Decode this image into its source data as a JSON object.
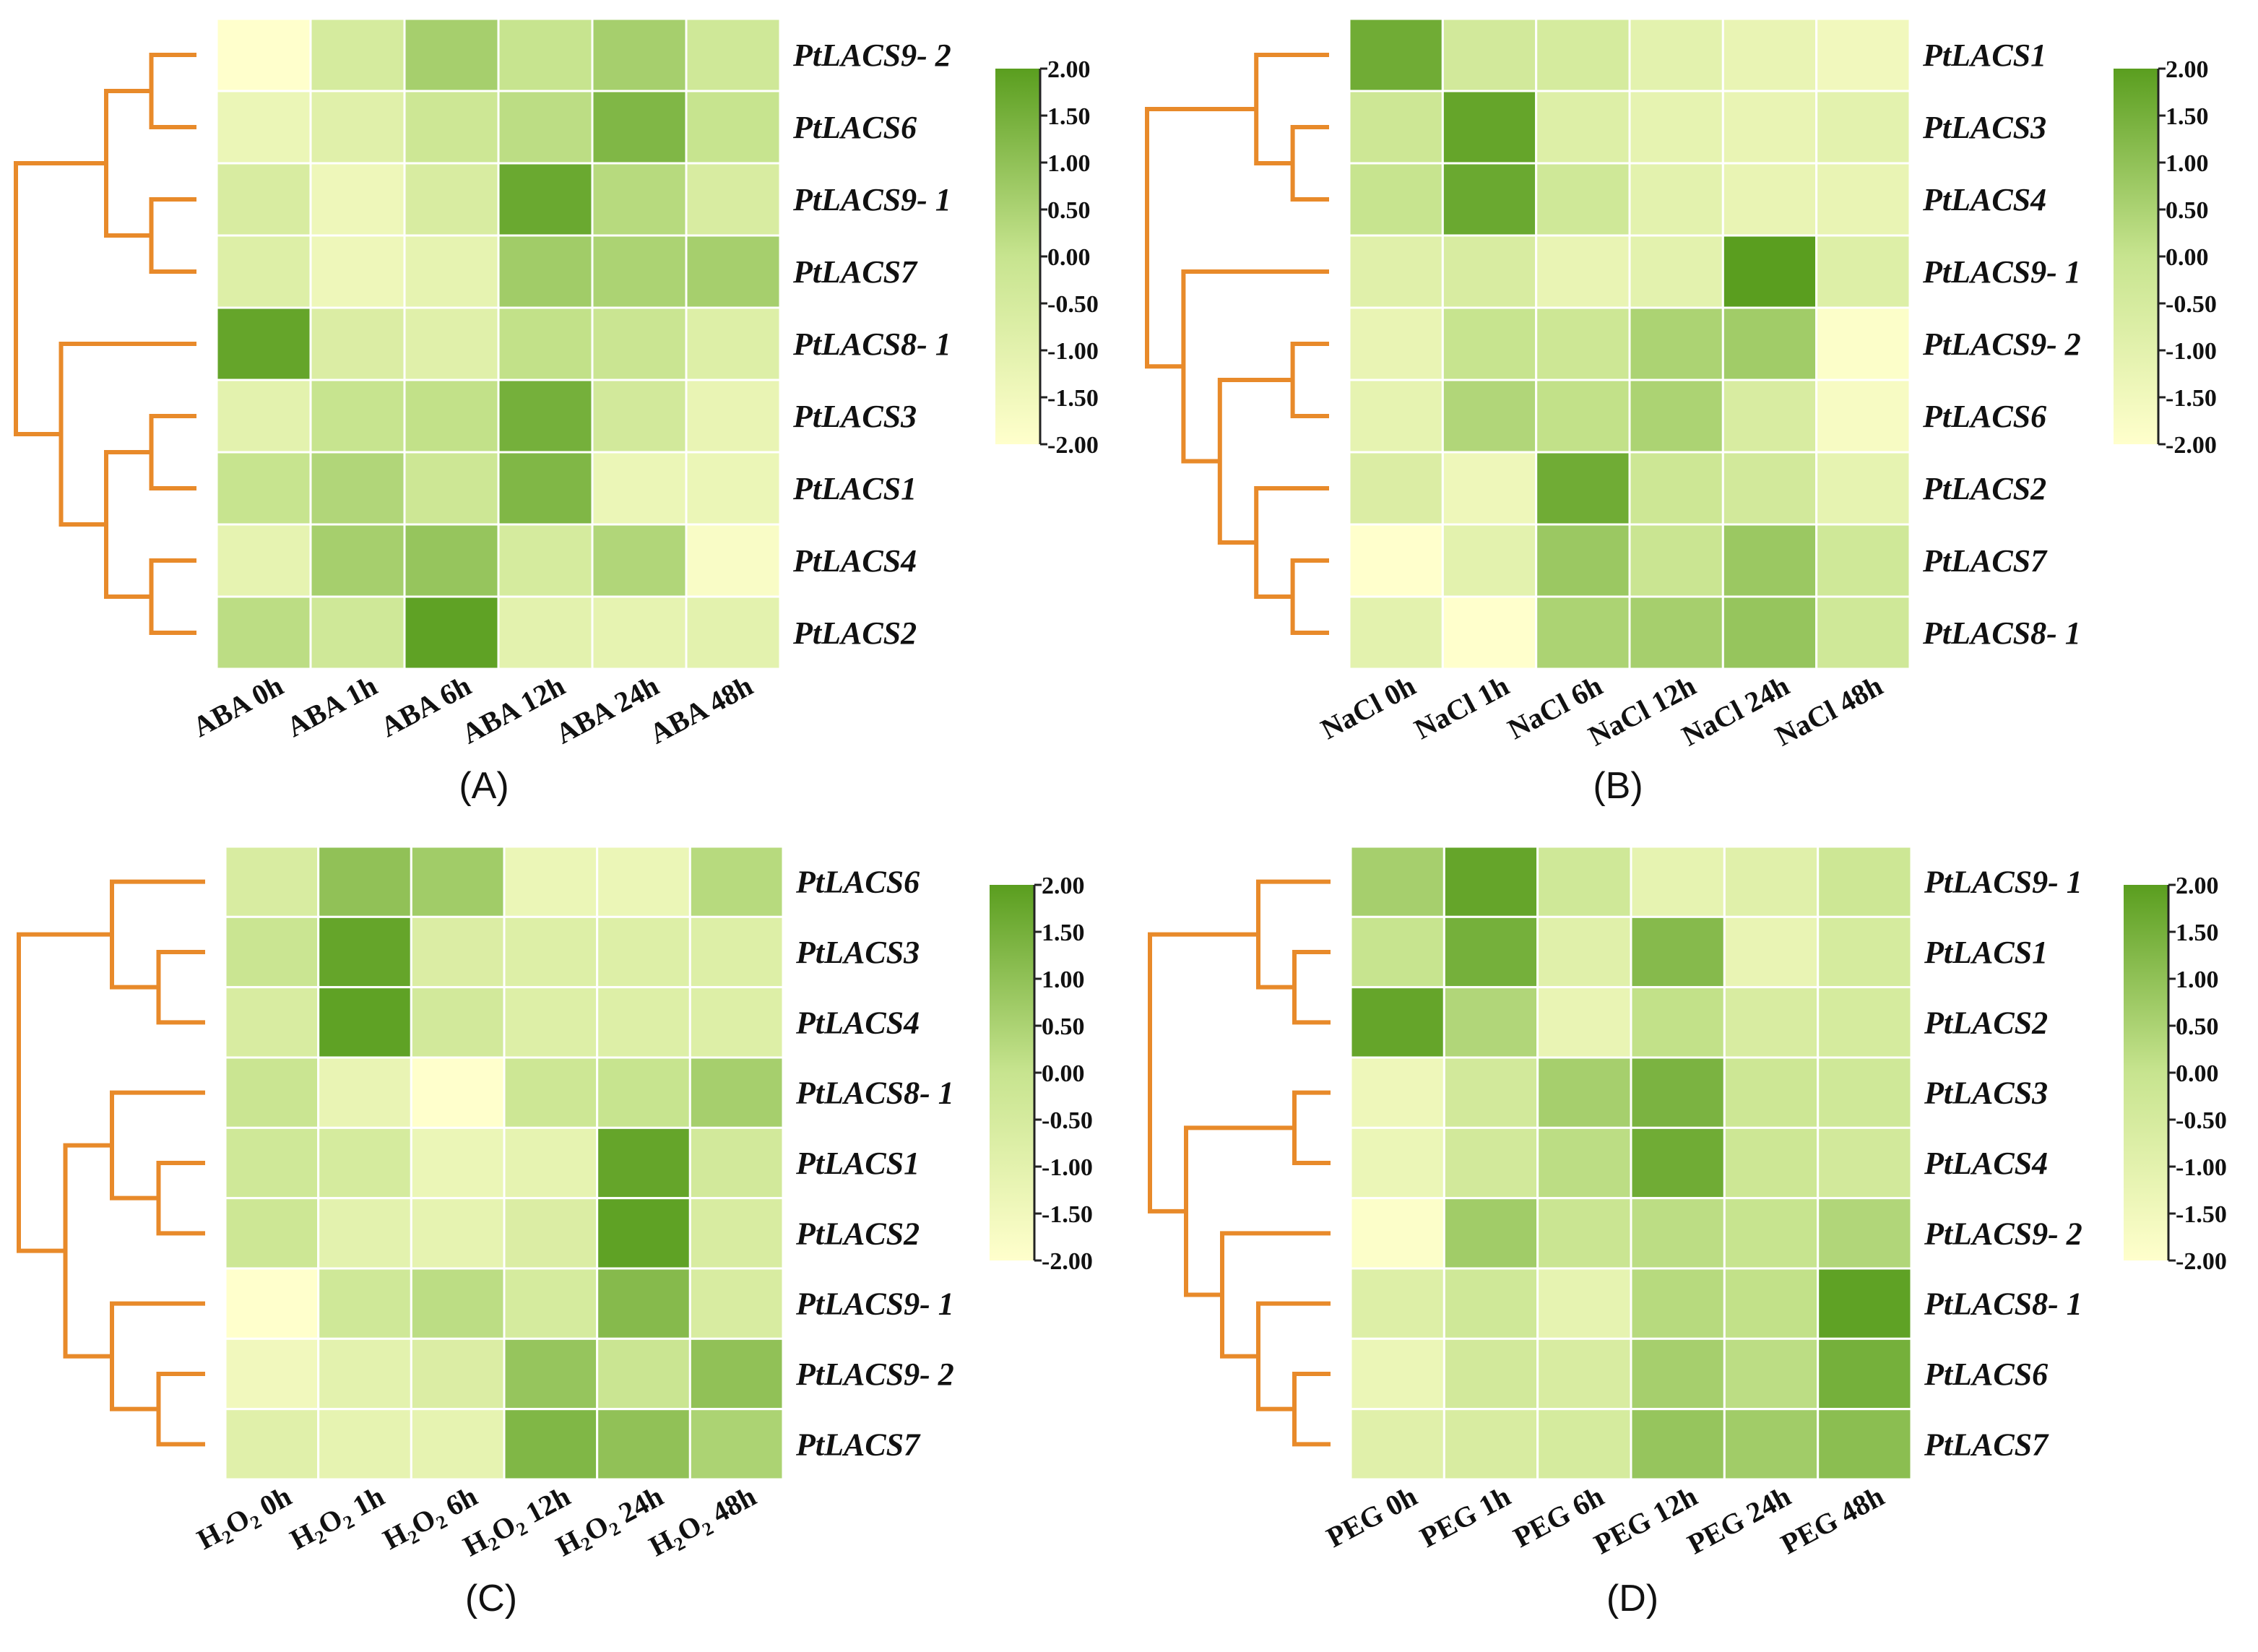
{
  "colors": {
    "low": "#ffffcc",
    "mid": "#c7e48f",
    "high": "#5a9e1f",
    "dendrogram": "#e88a2a"
  },
  "chart_data": [
    {
      "type": "heatmap",
      "panel_label": "(A)",
      "rows": [
        "PtLACS9- 2",
        "PtLACS6",
        "PtLACS9- 1",
        "PtLACS7",
        "PtLACS8- 1",
        "PtLACS3",
        "PtLACS1",
        "PtLACS4",
        "PtLACS2"
      ],
      "columns": [
        "ABA 0h",
        "ABA 1h",
        "ABA 6h",
        "ABA 12h",
        "ABA 24h",
        "ABA 48h"
      ],
      "values": [
        [
          -2.0,
          -0.5,
          0.6,
          0.0,
          0.6,
          -0.3
        ],
        [
          -1.3,
          -0.9,
          -0.2,
          0.2,
          1.3,
          0.0
        ],
        [
          -0.6,
          -1.4,
          -0.6,
          1.7,
          0.3,
          -0.6
        ],
        [
          -0.8,
          -1.4,
          -1.1,
          0.7,
          0.5,
          0.6
        ],
        [
          1.8,
          -0.7,
          -0.9,
          0.1,
          -0.1,
          -0.8
        ],
        [
          -1.0,
          0.0,
          0.1,
          1.5,
          -0.4,
          -1.2
        ],
        [
          0.0,
          0.4,
          -0.2,
          1.3,
          -1.3,
          -1.3
        ],
        [
          -1.1,
          0.6,
          0.9,
          -0.5,
          0.4,
          -1.8
        ],
        [
          0.2,
          -0.3,
          1.9,
          -1.0,
          -1.1,
          -1.0
        ]
      ],
      "colorbar": {
        "ticks": [
          "2.00",
          "1.50",
          "1.00",
          "0.50",
          "0.00",
          "-0.50",
          "-1.00",
          "-1.50",
          "-2.00"
        ],
        "range": [
          -2,
          2
        ]
      }
    },
    {
      "type": "heatmap",
      "panel_label": "(B)",
      "rows": [
        "PtLACS1",
        "PtLACS3",
        "PtLACS4",
        "PtLACS9- 1",
        "PtLACS9- 2",
        "PtLACS6",
        "PtLACS2",
        "PtLACS7",
        "PtLACS8- 1"
      ],
      "columns": [
        "NaCl 0h",
        "NaCl 1h",
        "NaCl 6h",
        "NaCl 12h",
        "NaCl 24h",
        "NaCl 48h"
      ],
      "values": [
        [
          1.6,
          -0.4,
          -0.5,
          -1.0,
          -1.2,
          -1.5
        ],
        [
          -0.2,
          1.8,
          -0.8,
          -1.1,
          -1.2,
          -1.0
        ],
        [
          0.0,
          1.7,
          -0.3,
          -1.0,
          -1.2,
          -1.2
        ],
        [
          -0.9,
          -0.6,
          -1.2,
          -1.0,
          2.0,
          -0.8
        ],
        [
          -1.2,
          0.0,
          -0.2,
          0.5,
          0.7,
          -1.9
        ],
        [
          -1.1,
          0.4,
          0.1,
          0.5,
          -0.6,
          -1.7
        ],
        [
          -0.7,
          -1.4,
          1.6,
          -0.2,
          -0.4,
          -1.1
        ],
        [
          -2.0,
          -1.0,
          0.8,
          -0.1,
          0.8,
          -0.3
        ],
        [
          -1.0,
          -2.0,
          0.5,
          0.6,
          0.9,
          -0.3
        ]
      ],
      "colorbar": {
        "ticks": [
          "2.00",
          "1.50",
          "1.00",
          "0.50",
          "0.00",
          "-0.50",
          "-1.00",
          "-1.50",
          "-2.00"
        ],
        "range": [
          -2,
          2
        ]
      }
    },
    {
      "type": "heatmap",
      "panel_label": "(C)",
      "rows": [
        "PtLACS6",
        "PtLACS3",
        "PtLACS4",
        "PtLACS8- 1",
        "PtLACS1",
        "PtLACS2",
        "PtLACS9- 1",
        "PtLACS9- 2",
        "PtLACS7"
      ],
      "columns": [
        "H2O2 0h",
        "H2O2 1h",
        "H2O2 6h",
        "H2O2 12h",
        "H2O2 24h",
        "H2O2 48h"
      ],
      "values": [
        [
          -0.6,
          1.0,
          0.7,
          -1.3,
          -1.3,
          0.3
        ],
        [
          -0.1,
          1.8,
          -0.7,
          -0.8,
          -0.8,
          -0.8
        ],
        [
          -0.6,
          1.9,
          -0.4,
          -0.8,
          -0.8,
          -0.8
        ],
        [
          -0.1,
          -1.2,
          -2.0,
          -0.2,
          0.0,
          0.6
        ],
        [
          -0.3,
          -0.5,
          -1.3,
          -1.1,
          1.8,
          -0.4
        ],
        [
          -0.2,
          -1.0,
          -1.1,
          -0.7,
          1.9,
          -0.6
        ],
        [
          -2.0,
          -0.3,
          0.2,
          -0.5,
          1.2,
          -0.6
        ],
        [
          -1.5,
          -1.0,
          -0.7,
          0.9,
          -0.1,
          1.0
        ],
        [
          -0.9,
          -1.1,
          -1.1,
          1.3,
          1.0,
          0.5
        ]
      ],
      "colorbar": {
        "ticks": [
          "2.00",
          "1.50",
          "1.00",
          "0.50",
          "0.00",
          "-0.50",
          "-1.00",
          "-1.50",
          "-2.00"
        ],
        "range": [
          -2,
          2
        ]
      }
    },
    {
      "type": "heatmap",
      "panel_label": "(D)",
      "rows": [
        "PtLACS9- 1",
        "PtLACS1",
        "PtLACS2",
        "PtLACS3",
        "PtLACS4",
        "PtLACS9- 2",
        "PtLACS8- 1",
        "PtLACS6",
        "PtLACS7"
      ],
      "columns": [
        "PEG 0h",
        "PEG 1h",
        "PEG 6h",
        "PEG 12h",
        "PEG 24h",
        "PEG 48h"
      ],
      "values": [
        [
          0.6,
          1.8,
          -0.3,
          -1.1,
          -0.9,
          -0.2
        ],
        [
          0.0,
          1.5,
          -0.9,
          1.2,
          -1.2,
          -0.5
        ],
        [
          1.8,
          0.4,
          -1.2,
          0.1,
          -0.6,
          -0.5
        ],
        [
          -1.4,
          -0.4,
          0.6,
          1.4,
          -0.2,
          -0.3
        ],
        [
          -1.3,
          -0.4,
          0.2,
          1.6,
          -0.2,
          -0.4
        ],
        [
          -1.9,
          0.7,
          -0.1,
          0.2,
          0.0,
          0.4
        ],
        [
          -0.8,
          -0.3,
          -1.1,
          0.3,
          0.1,
          1.9
        ],
        [
          -1.3,
          -0.4,
          -0.6,
          0.6,
          0.2,
          1.5
        ],
        [
          -0.9,
          -0.6,
          -0.5,
          0.9,
          0.7,
          1.1
        ]
      ],
      "colorbar": {
        "ticks": [
          "2.00",
          "1.50",
          "1.00",
          "0.50",
          "0.00",
          "-0.50",
          "-1.00",
          "-1.50",
          "-2.00"
        ],
        "range": [
          -2,
          2
        ]
      }
    }
  ]
}
